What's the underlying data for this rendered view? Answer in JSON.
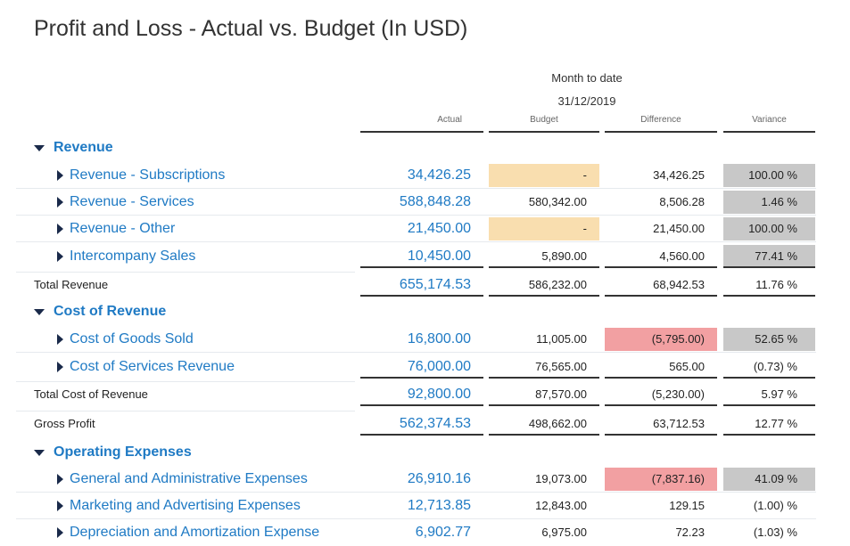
{
  "title": "Profit and Loss - Actual vs. Budget (In USD)",
  "period": "Month to date",
  "date": "31/12/2019",
  "columns": {
    "actual": "Actual",
    "budget": "Budget",
    "difference": "Difference",
    "variance": "Variance"
  },
  "sections": {
    "revenue": "Revenue",
    "cost_of_revenue": "Cost of Revenue",
    "operating_expenses": "Operating Expenses"
  },
  "rows": [
    {
      "label": "Revenue - Subscriptions",
      "actual": "34,426.25",
      "budget": "-",
      "difference": "34,426.25",
      "variance": "100.00 %"
    },
    {
      "label": "Revenue - Services",
      "actual": "588,848.28",
      "budget": "580,342.00",
      "difference": "8,506.28",
      "variance": "1.46 %"
    },
    {
      "label": "Revenue - Other",
      "actual": "21,450.00",
      "budget": "-",
      "difference": "21,450.00",
      "variance": "100.00 %"
    },
    {
      "label": "Intercompany Sales",
      "actual": "10,450.00",
      "budget": "5,890.00",
      "difference": "4,560.00",
      "variance": "77.41 %"
    },
    {
      "label": "Total Revenue",
      "actual": "655,174.53",
      "budget": "586,232.00",
      "difference": "68,942.53",
      "variance": "11.76 %"
    },
    {
      "label": "Cost of Goods Sold",
      "actual": "16,800.00",
      "budget": "11,005.00",
      "difference": "(5,795.00)",
      "variance": "52.65 %"
    },
    {
      "label": "Cost of Services Revenue",
      "actual": "76,000.00",
      "budget": "76,565.00",
      "difference": "565.00",
      "variance": "(0.73) %"
    },
    {
      "label": "Total Cost of Revenue",
      "actual": "92,800.00",
      "budget": "87,570.00",
      "difference": "(5,230.00)",
      "variance": "5.97 %"
    },
    {
      "label": "Gross Profit",
      "actual": "562,374.53",
      "budget": "498,662.00",
      "difference": "63,712.53",
      "variance": "12.77 %"
    },
    {
      "label": "General and Administrative Expenses",
      "actual": "26,910.16",
      "budget": "19,073.00",
      "difference": "(7,837.16)",
      "variance": "41.09 %"
    },
    {
      "label": "Marketing and Advertising Expenses",
      "actual": "12,713.85",
      "budget": "12,843.00",
      "difference": "129.15",
      "variance": "(1.00) %"
    },
    {
      "label": "Depreciation and Amortization Expense",
      "actual": "6,902.77",
      "budget": "6,975.00",
      "difference": "72.23",
      "variance": "(1.03) %"
    }
  ],
  "colors": {
    "link": "#1f7ac4",
    "highlight_yellow": "#f9deaf",
    "highlight_red": "#f2a0a2",
    "highlight_gray": "#c8c8c8"
  },
  "icons": {
    "expanded": "triangle-down-icon",
    "collapsed": "triangle-right-icon"
  }
}
